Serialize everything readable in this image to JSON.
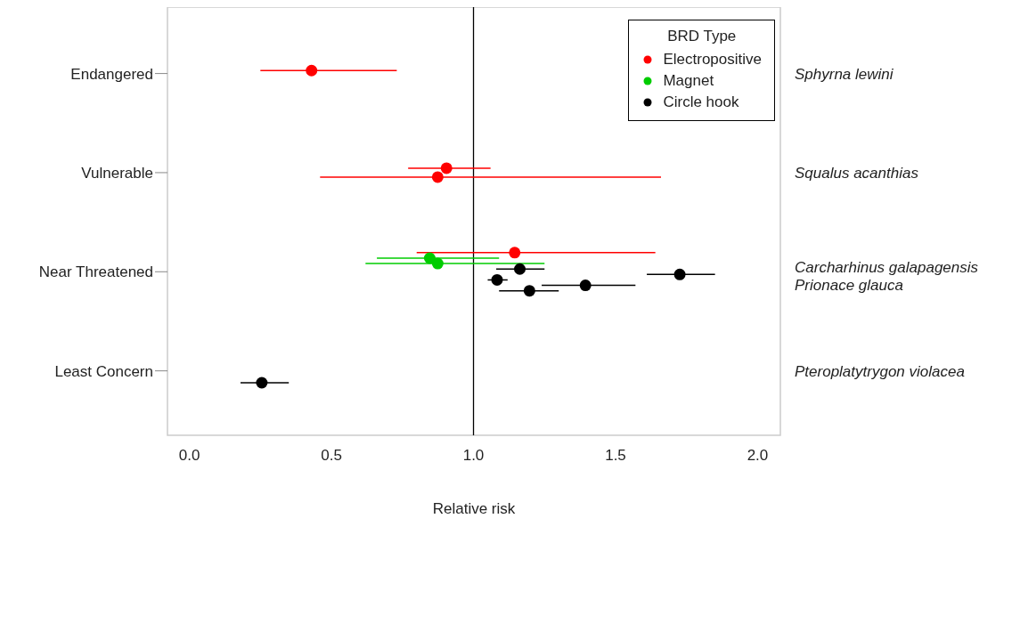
{
  "chart_data": {
    "type": "scatter",
    "orientation": "horizontal",
    "xlabel": "Relative risk",
    "legend_title": "BRD Type",
    "legend": "top right",
    "marker": "circle",
    "grid": false,
    "categories": [
      "Endangered",
      "Vulnerable",
      "Near Threatened",
      "Least Concern"
    ],
    "xlim": [
      -0.077,
      2.08
    ],
    "xticks": [
      {
        "value": 0,
        "label": "0.0"
      },
      0.5,
      {
        "value": 1,
        "label": "1.0"
      },
      1.5,
      {
        "value": 2,
        "label": "2.0"
      }
    ],
    "annotations": [
      "Sphyrna lewini",
      "Squalus acanthias",
      "Carcharhinus galapagensis",
      "Prionace glauca",
      "Pteroplatytrygon violacea"
    ],
    "ref_lines": [
      {
        "axis": "x",
        "value": 1,
        "color": "#000000"
      }
    ],
    "series": [
      {
        "name": "Electropositive",
        "color": "#ff0000",
        "x": [
          "Endangered",
          "Vulnerable",
          "Vulnerable",
          "Near Threatened"
        ],
        "values": [
          0.43,
          0.905,
          0.874,
          1.145
        ],
        "errors": [
          [
            0.25,
            0.73
          ],
          [
            0.77,
            1.06
          ],
          [
            0.46,
            1.66
          ],
          [
            0.8,
            1.64
          ]
        ]
      },
      {
        "name": "Magnet",
        "color": "#00cc00",
        "x": [
          "Near Threatened",
          "Near Threatened"
        ],
        "values": [
          0.846,
          0.874
        ],
        "errors": [
          [
            0.66,
            1.09
          ],
          [
            0.62,
            1.25
          ]
        ]
      },
      {
        "name": "Circle hook",
        "color": "#000000",
        "x": [
          "Near Threatened",
          "Near Threatened",
          "Near Threatened",
          "Near Threatened",
          "Near Threatened",
          "Least Concern"
        ],
        "values": [
          1.163,
          1.726,
          1.083,
          1.394,
          1.197,
          0.255
        ],
        "errors": [
          [
            1.08,
            1.25
          ],
          [
            1.61,
            1.85
          ],
          [
            1.05,
            1.12
          ],
          [
            1.24,
            1.57
          ],
          [
            1.09,
            1.3
          ],
          [
            0.18,
            0.35
          ]
        ]
      }
    ]
  }
}
